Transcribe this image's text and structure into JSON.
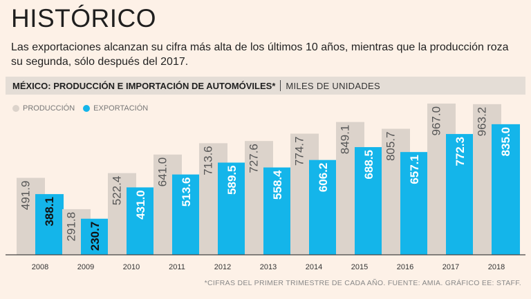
{
  "header": {
    "title": "HISTÓRICO",
    "subtitle": "Las exportaciones alcanzan su cifra más alta de los últimos 10 años, mientras que la producción roza su segunda, sólo después del 2017."
  },
  "chart_header": {
    "title": "MÉXICO: PRODUCCIÓN E IMPORTACIÓN DE AUTOMÓVILES*",
    "units": "MILES DE UNIDADES"
  },
  "legend": {
    "production": "PRODUCCIÓN",
    "export": "EXPORTACIÓN"
  },
  "colors": {
    "production": "#dcd3cb",
    "export": "#14b5ea",
    "axis": "#444444",
    "background": "#fdf1e7"
  },
  "chart_data": {
    "type": "bar",
    "categories": [
      "2008",
      "2009",
      "2010",
      "2011",
      "2012",
      "2013",
      "2014",
      "2015",
      "2016",
      "2017",
      "2018"
    ],
    "series": [
      {
        "name": "PRODUCCIÓN",
        "values": [
          491.9,
          291.8,
          522.4,
          641.0,
          713.6,
          727.6,
          774.7,
          849.1,
          805.7,
          967.0,
          963.2
        ],
        "labels": [
          "491.9",
          "291.8",
          "522.4",
          "641.0",
          "713.6",
          "727.6",
          "774.7",
          "849.1",
          "805.7",
          "967.0",
          "963.2"
        ]
      },
      {
        "name": "EXPORTACIÓN",
        "values": [
          388.1,
          230.7,
          431.0,
          513.6,
          589.5,
          558.4,
          606.2,
          688.5,
          657.1,
          772.3,
          835.0
        ],
        "labels": [
          "388.1",
          "230.7",
          "431.0",
          "513.6",
          "589.5",
          "558.4",
          "606.2",
          "688.5",
          "657.1",
          "772.3",
          "835.0"
        ]
      }
    ],
    "ylim": [
      0,
      1000
    ],
    "grid": false,
    "legend_position": "top-left"
  },
  "footnote": "*CIFRAS DEL PRIMER TRIMESTRE DE CADA AÑO.  FUENTE: AMIA.  GRÁFICO EE: STAFF."
}
